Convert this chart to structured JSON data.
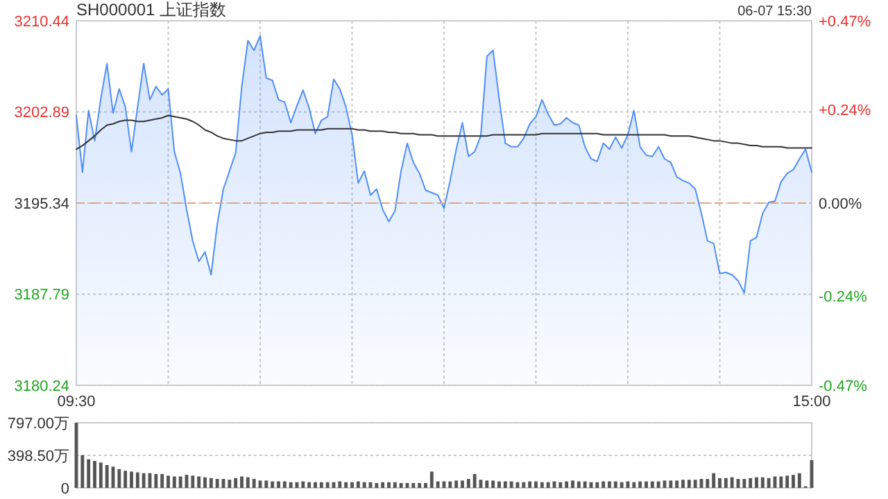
{
  "chart_data": [
    {
      "type": "line",
      "title": "SH000001 上证指数",
      "subtitle": "06-07 15:30",
      "categories": [
        "09:30",
        null,
        null,
        null,
        null,
        null,
        null,
        null,
        null,
        null,
        null,
        null,
        null,
        null,
        null,
        null,
        null,
        null,
        null,
        null,
        null,
        null,
        null,
        null,
        null,
        null,
        null,
        null,
        null,
        null,
        null,
        null,
        null,
        null,
        null,
        null,
        null,
        null,
        null,
        null,
        null,
        null,
        null,
        null,
        null,
        null,
        null,
        null,
        null,
        null,
        null,
        null,
        null,
        null,
        null,
        null,
        null,
        null,
        null,
        null,
        null,
        null,
        null,
        null,
        null,
        null,
        null,
        null,
        null,
        null,
        null,
        null,
        null,
        null,
        null,
        null,
        null,
        null,
        null,
        null,
        null,
        null,
        null,
        null,
        null,
        null,
        null,
        null,
        null,
        null,
        null,
        null,
        null,
        null,
        null,
        null,
        null,
        null,
        null,
        null,
        null,
        null,
        null,
        null,
        null,
        null,
        null,
        null,
        null,
        null,
        null,
        null,
        null,
        null,
        null,
        null,
        null,
        null,
        null,
        null,
        "15:00"
      ],
      "ylim": [
        3180.24,
        3210.44
      ],
      "yticks": [
        3180.24,
        3187.79,
        3195.34,
        3202.89,
        3210.44
      ],
      "y2lim": [
        -0.47,
        0.47
      ],
      "y2ticks": [
        {
          "value": -0.47,
          "label": "-0.47%"
        },
        {
          "value": -0.24,
          "label": "-0.24%"
        },
        {
          "value": 0,
          "label": "0.00%"
        },
        {
          "value": 0.24,
          "label": "+0.24%"
        },
        {
          "value": 0.47,
          "label": "+0.47%"
        }
      ],
      "grid": true,
      "ref_lines": [
        {
          "axis": "y",
          "value": 3195.34,
          "color": "#e9a07c",
          "line_style": "dashed"
        }
      ],
      "series": [
        {
          "type": "area",
          "color": "#4f8ef7",
          "values": [
            3202.6,
            3197.9,
            3203.0,
            3200.5,
            3204.0,
            3206.9,
            3202.8,
            3204.8,
            3203.3,
            3199.6,
            3203.3,
            3206.9,
            3203.9,
            3205.0,
            3204.3,
            3204.8,
            3199.6,
            3197.8,
            3194.8,
            3192.2,
            3190.5,
            3191.3,
            3189.4,
            3193.6,
            3196.5,
            3198.0,
            3199.5,
            3205.0,
            3208.8,
            3208.0,
            3209.2,
            3205.7,
            3205.5,
            3203.9,
            3203.7,
            3202.0,
            3203.4,
            3204.7,
            3203.2,
            3201.1,
            3202.2,
            3202.5,
            3205.6,
            3204.8,
            3203.3,
            3201.0,
            3197.0,
            3198.0,
            3196.0,
            3196.5,
            3194.8,
            3193.8,
            3194.7,
            3198.0,
            3200.3,
            3198.7,
            3197.8,
            3196.4,
            3196.2,
            3196.0,
            3194.9,
            3197.2,
            3199.8,
            3202.0,
            3199.2,
            3199.6,
            3200.9,
            3207.5,
            3208.0,
            3204.0,
            3200.3,
            3200.0,
            3200.0,
            3200.7,
            3201.9,
            3202.5,
            3203.9,
            3202.7,
            3201.8,
            3201.9,
            3202.4,
            3202.0,
            3201.8,
            3200.0,
            3199.0,
            3198.8,
            3200.3,
            3199.8,
            3200.8,
            3199.9,
            3201.0,
            3203.0,
            3200.0,
            3199.3,
            3199.2,
            3200.0,
            3199.0,
            3198.7,
            3197.5,
            3197.2,
            3197.0,
            3196.5,
            3194.5,
            3192.2,
            3192.0,
            3189.5,
            3189.6,
            3189.4,
            3188.9,
            3187.9,
            3192.2,
            3192.5,
            3194.5,
            3195.4,
            3195.5,
            3197.1,
            3197.8,
            3198.1,
            3199.0,
            3199.8,
            3197.9
          ]
        },
        {
          "color": "#333333",
          "values": [
            3199.8,
            3200.1,
            3200.5,
            3200.9,
            3201.4,
            3201.8,
            3201.9,
            3202.1,
            3202.2,
            3202.2,
            3202.1,
            3202.1,
            3202.2,
            3202.3,
            3202.4,
            3202.6,
            3202.5,
            3202.4,
            3202.3,
            3202.1,
            3201.8,
            3201.4,
            3201.2,
            3200.9,
            3200.7,
            3200.6,
            3200.5,
            3200.5,
            3200.7,
            3200.9,
            3201.1,
            3201.2,
            3201.2,
            3201.3,
            3201.3,
            3201.3,
            3201.4,
            3201.4,
            3201.4,
            3201.4,
            3201.4,
            3201.5,
            3201.5,
            3201.5,
            3201.5,
            3201.5,
            3201.4,
            3201.4,
            3201.3,
            3201.3,
            3201.3,
            3201.2,
            3201.2,
            3201.1,
            3201.1,
            3201.1,
            3201.0,
            3201.0,
            3201.0,
            3200.9,
            3200.9,
            3200.9,
            3200.9,
            3200.9,
            3200.9,
            3200.9,
            3200.9,
            3200.9,
            3201.0,
            3201.0,
            3201.0,
            3201.0,
            3201.0,
            3201.0,
            3201.0,
            3201.0,
            3201.1,
            3201.1,
            3201.1,
            3201.1,
            3201.1,
            3201.1,
            3201.1,
            3201.1,
            3201.1,
            3201.1,
            3201.0,
            3201.0,
            3201.0,
            3201.0,
            3201.0,
            3201.0,
            3201.0,
            3201.0,
            3201.0,
            3201.0,
            3201.0,
            3200.9,
            3200.9,
            3200.9,
            3200.9,
            3200.8,
            3200.7,
            3200.6,
            3200.5,
            3200.5,
            3200.4,
            3200.3,
            3200.3,
            3200.2,
            3200.1,
            3200.1,
            3200.0,
            3200.0,
            3200.0,
            3200.0,
            3199.9,
            3199.9,
            3199.9,
            3199.9,
            3199.9
          ]
        }
      ]
    },
    {
      "type": "bar",
      "color": "#555555",
      "ylim": [
        0,
        797
      ],
      "yticks": [
        {
          "value": 797,
          "label": "797.00万"
        },
        {
          "value": 398.5,
          "label": "398.50万"
        },
        0
      ],
      "grid": "y",
      "categories": [
        null,
        null,
        null,
        null,
        null,
        null,
        null,
        null,
        null,
        null,
        null,
        null,
        null,
        null,
        null,
        null,
        null,
        null,
        null,
        null,
        null,
        null,
        null,
        null,
        null,
        null,
        null,
        null,
        null,
        null,
        null,
        null,
        null,
        null,
        null,
        null,
        null,
        null,
        null,
        null,
        null,
        null,
        null,
        null,
        null,
        null,
        null,
        null,
        null,
        null,
        null,
        null,
        null,
        null,
        null,
        null,
        null,
        null,
        null,
        null,
        null,
        null,
        null,
        null,
        null,
        null,
        null,
        null,
        null,
        null,
        null,
        null,
        null,
        null,
        null,
        null,
        null,
        null,
        null,
        null,
        null,
        null,
        null,
        null,
        null,
        null,
        null,
        null,
        null,
        null,
        null,
        null,
        null,
        null,
        null,
        null,
        null,
        null,
        null,
        null,
        null,
        null,
        null,
        null,
        null,
        null,
        null,
        null,
        null,
        null,
        null,
        null,
        null,
        null,
        null,
        null,
        null,
        null,
        null,
        null,
        null
      ],
      "values": [
        797,
        400,
        350,
        330,
        310,
        280,
        260,
        230,
        210,
        200,
        190,
        180,
        180,
        170,
        170,
        150,
        140,
        140,
        160,
        150,
        140,
        130,
        120,
        110,
        110,
        100,
        120,
        140,
        130,
        110,
        90,
        90,
        80,
        80,
        80,
        70,
        70,
        80,
        70,
        70,
        70,
        70,
        70,
        80,
        70,
        70,
        80,
        70,
        70,
        60,
        70,
        70,
        70,
        60,
        60,
        60,
        60,
        60,
        200,
        80,
        80,
        80,
        90,
        90,
        110,
        170,
        100,
        90,
        90,
        80,
        80,
        80,
        70,
        70,
        80,
        80,
        70,
        70,
        80,
        70,
        80,
        90,
        80,
        80,
        70,
        70,
        80,
        80,
        80,
        70,
        80,
        70,
        80,
        80,
        80,
        80,
        90,
        90,
        90,
        100,
        100,
        100,
        110,
        110,
        180,
        120,
        120,
        130,
        110,
        110,
        120,
        130,
        130,
        120,
        140,
        140,
        150,
        160,
        180,
        20,
        340
      ]
    }
  ]
}
